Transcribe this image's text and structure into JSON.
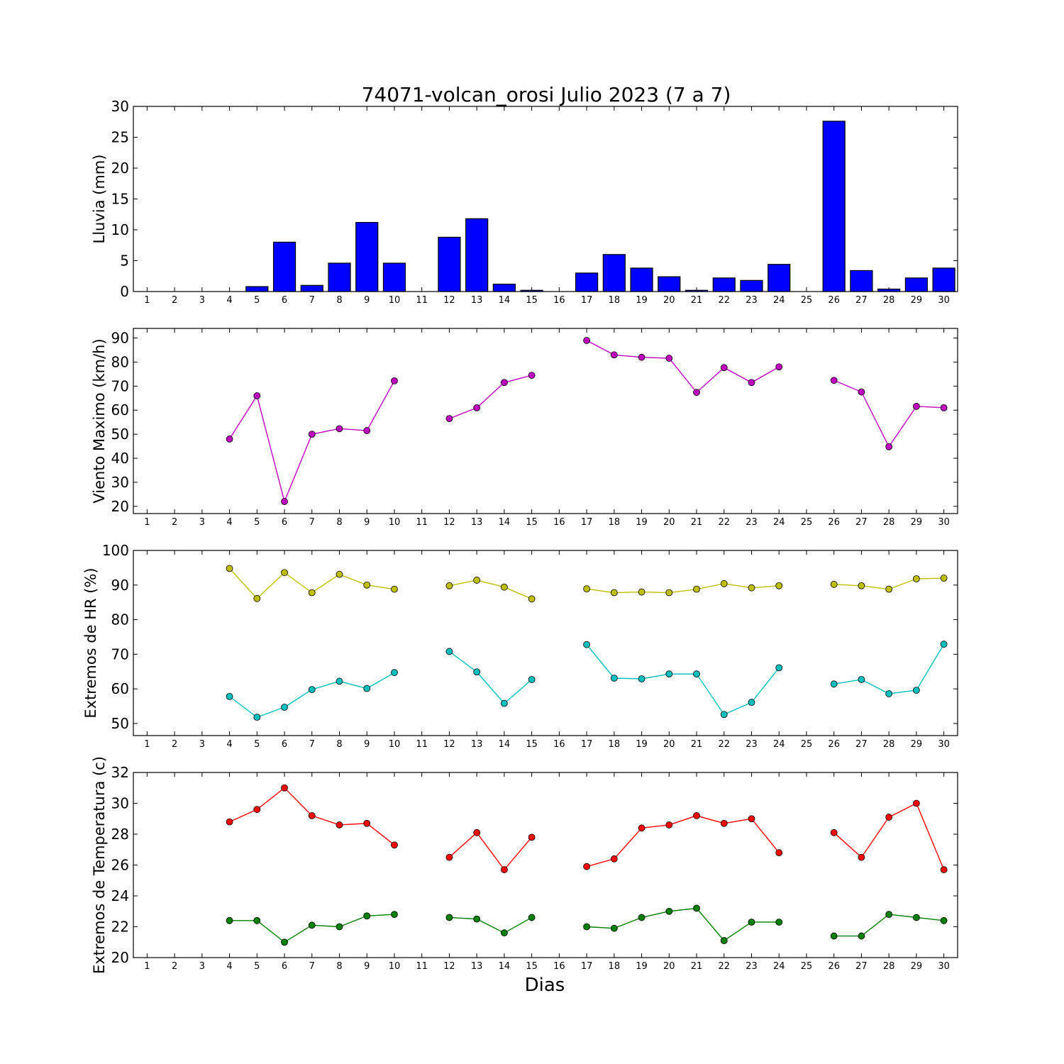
{
  "title": "74071-volcan_orosi Julio 2023  (7 a 7)",
  "xlabel": "Dias",
  "chart_data": [
    {
      "type": "bar",
      "ylabel": "Lluvia (mm)",
      "ylim": [
        0,
        30
      ],
      "yticks": [
        0,
        5,
        10,
        15,
        20,
        25,
        30
      ],
      "categories": [
        1,
        2,
        3,
        4,
        5,
        6,
        7,
        8,
        9,
        10,
        11,
        12,
        13,
        14,
        15,
        16,
        17,
        18,
        19,
        20,
        21,
        22,
        23,
        24,
        25,
        26,
        27,
        28,
        29,
        30
      ],
      "series": [
        {
          "color": "#0000ff",
          "values": [
            0,
            0,
            0,
            0,
            0.8,
            8.0,
            1.0,
            4.6,
            11.2,
            4.6,
            0,
            8.8,
            11.8,
            1.2,
            0.2,
            0,
            3.0,
            6.0,
            3.8,
            2.4,
            0.2,
            2.2,
            1.8,
            4.4,
            0,
            27.6,
            3.4,
            0.4,
            2.2,
            3.8
          ]
        }
      ]
    },
    {
      "type": "line",
      "ylabel": "Viento Maximo (km/h)",
      "ylim": [
        17,
        94
      ],
      "yticks": [
        20,
        30,
        40,
        50,
        60,
        70,
        80,
        90
      ],
      "x": [
        1,
        2,
        3,
        4,
        5,
        6,
        7,
        8,
        9,
        10,
        11,
        12,
        13,
        14,
        15,
        16,
        17,
        18,
        19,
        20,
        21,
        22,
        23,
        24,
        25,
        26,
        27,
        28,
        29,
        30
      ],
      "series": [
        {
          "color": "#bf00bf",
          "values": [
            null,
            null,
            null,
            48,
            66,
            22,
            50,
            52.3,
            51.5,
            72.2,
            null,
            56.5,
            61,
            71.5,
            74.5,
            null,
            89,
            83,
            82,
            81.6,
            67.4,
            77.7,
            71.5,
            78,
            null,
            72.4,
            67.6,
            44.8,
            61.6,
            61
          ]
        }
      ]
    },
    {
      "type": "line",
      "ylabel": "Extremos de HR (%)",
      "ylim": [
        46.5,
        100
      ],
      "yticks": [
        50,
        60,
        70,
        80,
        90,
        100
      ],
      "x": [
        1,
        2,
        3,
        4,
        5,
        6,
        7,
        8,
        9,
        10,
        11,
        12,
        13,
        14,
        15,
        16,
        17,
        18,
        19,
        20,
        21,
        22,
        23,
        24,
        25,
        26,
        27,
        28,
        29,
        30
      ],
      "series": [
        {
          "color": "#bfbf00",
          "values": [
            null,
            null,
            null,
            94.8,
            86.1,
            93.6,
            87.8,
            93.1,
            90,
            88.8,
            null,
            89.8,
            91.4,
            89.4,
            86,
            null,
            88.9,
            87.8,
            88,
            87.8,
            88.8,
            90.4,
            89.2,
            89.8,
            null,
            90.2,
            89.8,
            88.8,
            91.8,
            92
          ]
        },
        {
          "color": "#00bfbf",
          "values": [
            null,
            null,
            null,
            57.8,
            51.8,
            54.7,
            59.8,
            62.2,
            60.1,
            64.7,
            null,
            70.8,
            64.9,
            55.8,
            62.7,
            null,
            72.8,
            63.1,
            62.9,
            64.3,
            64.3,
            52.6,
            56.1,
            66.1,
            null,
            61.4,
            62.7,
            58.6,
            59.6,
            72.9
          ]
        }
      ]
    },
    {
      "type": "line",
      "ylabel": "Extremos de Temperatura (c)",
      "ylim": [
        20,
        32
      ],
      "yticks": [
        20,
        22,
        24,
        26,
        28,
        30,
        32
      ],
      "x": [
        1,
        2,
        3,
        4,
        5,
        6,
        7,
        8,
        9,
        10,
        11,
        12,
        13,
        14,
        15,
        16,
        17,
        18,
        19,
        20,
        21,
        22,
        23,
        24,
        25,
        26,
        27,
        28,
        29,
        30
      ],
      "series": [
        {
          "color": "#ff0000",
          "values": [
            null,
            null,
            null,
            28.8,
            29.6,
            31,
            29.2,
            28.6,
            28.7,
            27.3,
            null,
            26.5,
            28.1,
            25.7,
            27.8,
            null,
            25.9,
            26.4,
            28.4,
            28.6,
            29.2,
            28.7,
            29,
            26.8,
            null,
            28.1,
            26.5,
            29.1,
            30,
            25.7
          ]
        },
        {
          "color": "#008000",
          "values": [
            null,
            null,
            null,
            22.4,
            22.4,
            21,
            22.1,
            22,
            22.7,
            22.8,
            null,
            22.6,
            22.5,
            21.6,
            22.6,
            null,
            22,
            21.9,
            22.6,
            23,
            23.2,
            21.1,
            22.3,
            22.3,
            null,
            21.4,
            21.4,
            22.8,
            22.6,
            22.4
          ]
        }
      ]
    }
  ]
}
